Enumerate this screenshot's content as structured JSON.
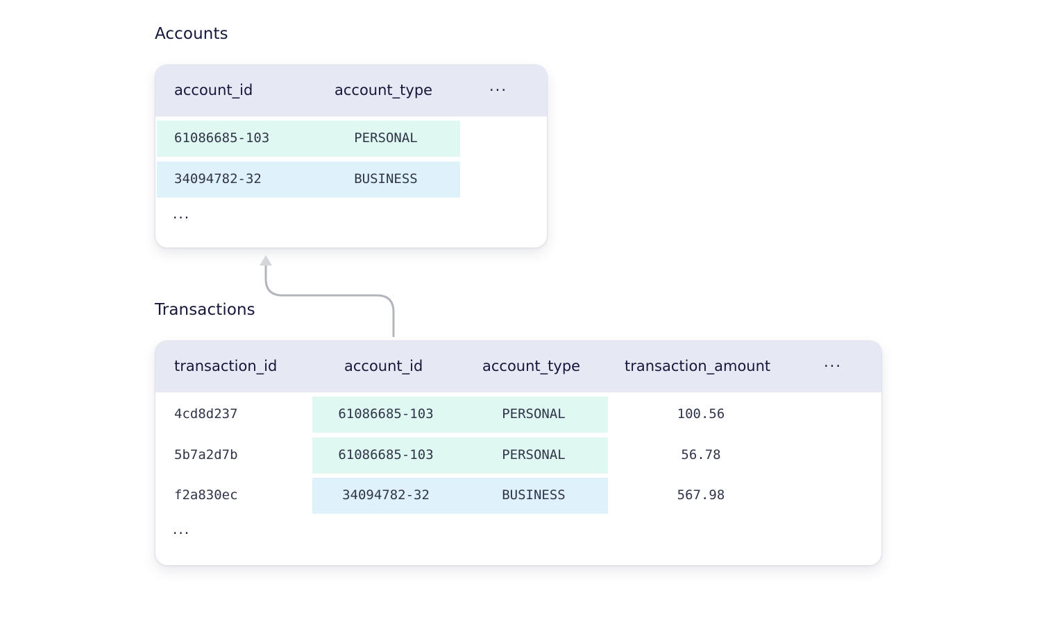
{
  "accounts": {
    "title": "Accounts",
    "columns": [
      "account_id",
      "account_type",
      "···"
    ],
    "rows": [
      {
        "account_id": "61086685-103",
        "account_type": "PERSONAL",
        "color": "#dff8f1"
      },
      {
        "account_id": "34094782-32",
        "account_type": "BUSINESS",
        "color": "#dff1fb"
      }
    ],
    "more": "···"
  },
  "transactions": {
    "title": "Transactions",
    "columns": [
      "transaction_id",
      "account_id",
      "account_type",
      "transaction_amount",
      "···"
    ],
    "rows": [
      {
        "transaction_id": "4cd8d237",
        "account_id": "61086685-103",
        "account_type": "PERSONAL",
        "transaction_amount": "100.56",
        "color": "#dff8f1"
      },
      {
        "transaction_id": "5b7a2d7b",
        "account_id": "61086685-103",
        "account_type": "PERSONAL",
        "transaction_amount": "56.78",
        "color": "#dff8f1"
      },
      {
        "transaction_id": "f2a830ec",
        "account_id": "34094782-32",
        "account_type": "BUSINESS",
        "transaction_amount": "567.98",
        "color": "#dff1fb"
      }
    ],
    "more": "···"
  },
  "colors": {
    "header_bg": "#e6e8f3",
    "personal_band": "#dff8f1",
    "business_band": "#dff1fb",
    "connector": "#b3b5bd"
  }
}
